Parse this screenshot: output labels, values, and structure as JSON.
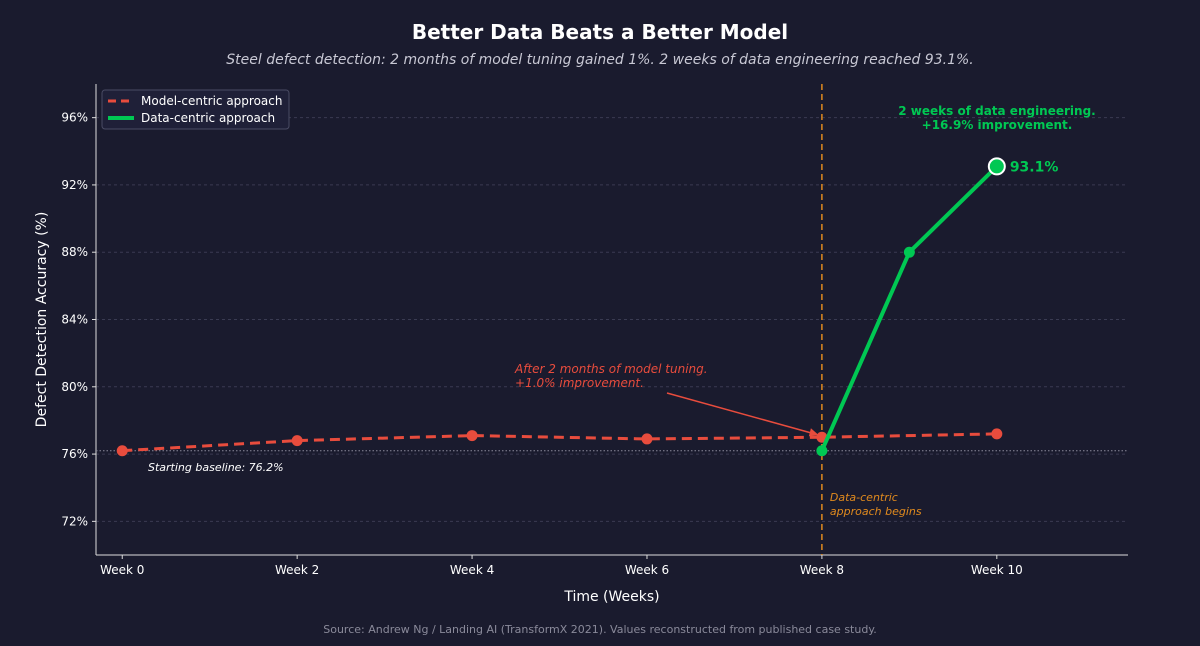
{
  "chart_data": {
    "type": "line",
    "title": "Better Data Beats a Better Model",
    "subtitle": "Steel defect detection: 2 months of model tuning gained 1%. 2 weeks of data engineering reached 93.1%.",
    "xlabel": "Time (Weeks)",
    "ylabel": "Defect Detection Accuracy (%)",
    "xlim": [
      -0.3,
      11.5
    ],
    "ylim": [
      70,
      98
    ],
    "xticks": [
      0,
      2,
      4,
      6,
      8,
      10
    ],
    "xtick_labels": [
      "Week 0",
      "Week 2",
      "Week 4",
      "Week 6",
      "Week 8",
      "Week 10"
    ],
    "yticks": [
      72,
      76,
      80,
      84,
      88,
      92,
      96
    ],
    "ytick_labels": [
      "72%",
      "76%",
      "80%",
      "84%",
      "88%",
      "92%",
      "96%"
    ],
    "grid": true,
    "legend_position": "top-left",
    "series": [
      {
        "name": "Model-centric approach",
        "style": "dashed",
        "color": "#e84c3d",
        "x": [
          0,
          2,
          4,
          6,
          8,
          10
        ],
        "y": [
          76.2,
          76.8,
          77.1,
          76.9,
          77.0,
          77.2
        ]
      },
      {
        "name": "Data-centric approach",
        "style": "solid",
        "color": "#00c853",
        "x": [
          8,
          9,
          10
        ],
        "y": [
          76.2,
          88.0,
          93.1
        ]
      }
    ],
    "baseline": {
      "y": 76.2,
      "label": "Starting baseline: 76.2%"
    },
    "vline": {
      "x": 8,
      "color": "#e08a1e",
      "label_lines": [
        "Data-centric",
        "approach begins"
      ]
    },
    "annotations": {
      "model": {
        "lines": [
          "After 2 months of model tuning.",
          "+1.0% improvement."
        ],
        "color": "#e84c3d"
      },
      "data": {
        "lines": [
          "2 weeks of data engineering.",
          "+16.9% improvement."
        ],
        "color": "#00c853"
      },
      "final_value": "93.1%"
    },
    "source": "Source: Andrew Ng / Landing AI (TransformX 2021). Values reconstructed from published case study."
  }
}
